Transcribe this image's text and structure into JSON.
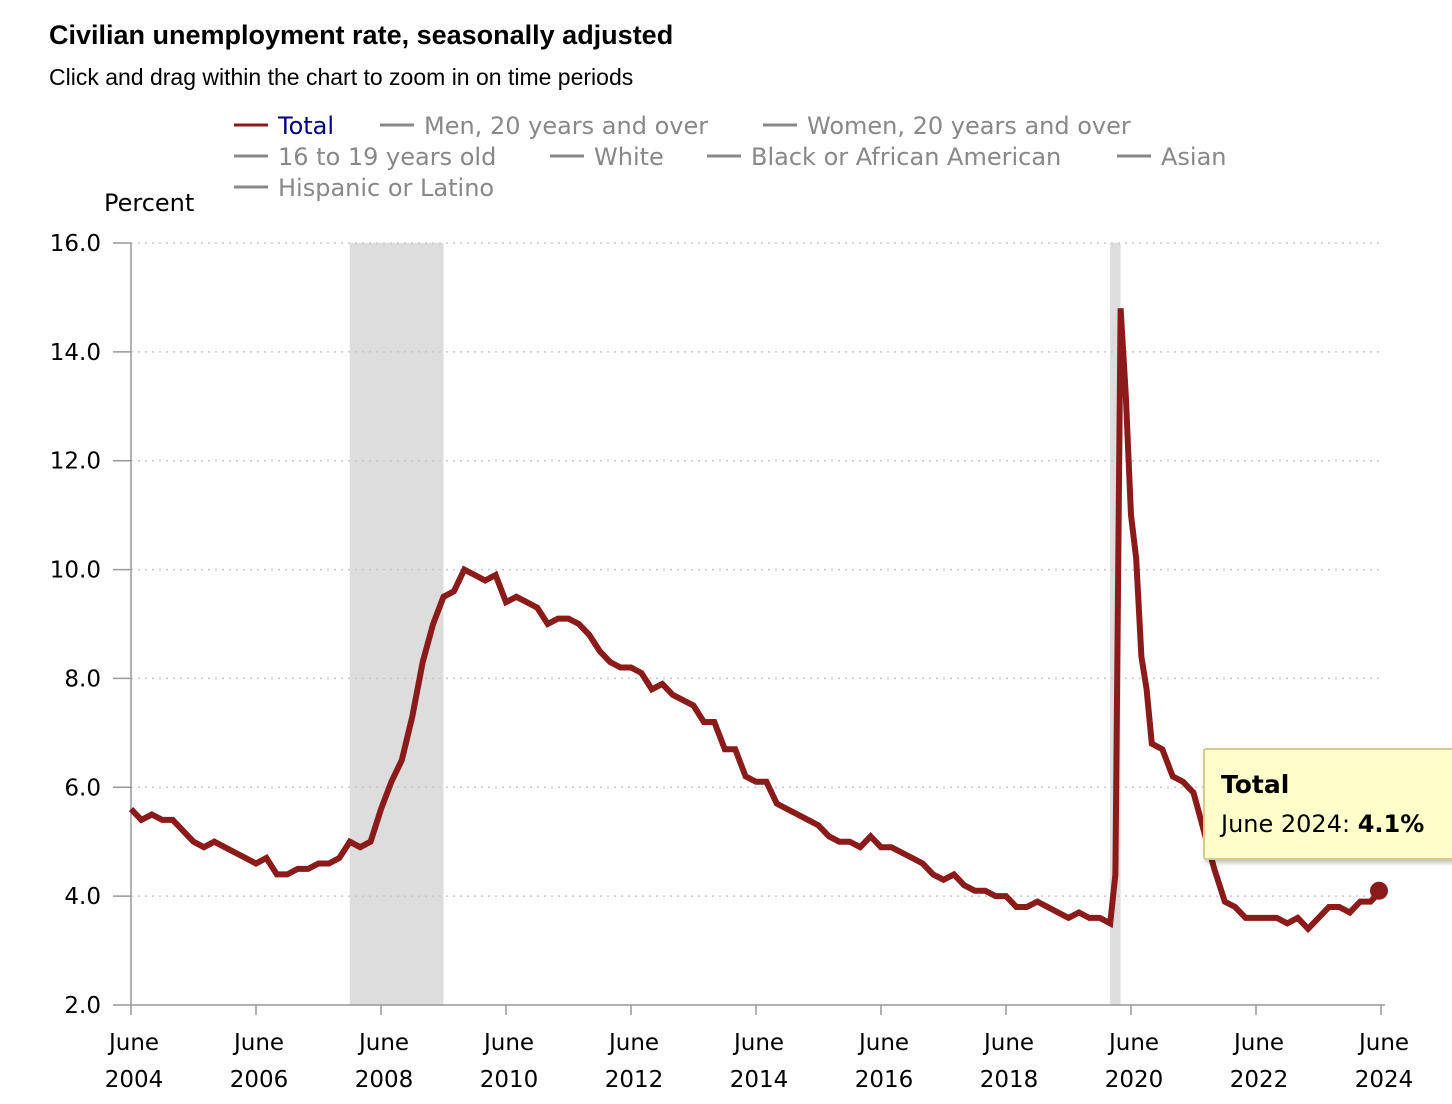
{
  "header": {
    "title": "Civilian unemployment rate, seasonally adjusted",
    "subtitle": "Click and drag within the chart to zoom in on time periods"
  },
  "legend": {
    "items": [
      {
        "label": "Total",
        "color": "#8b1a1a",
        "text_color": "#000080",
        "active": true
      },
      {
        "label": "Men, 20 years and over",
        "color": "#888888",
        "text_color": "#888888",
        "active": false
      },
      {
        "label": "Women, 20 years and over",
        "color": "#888888",
        "text_color": "#888888",
        "active": false
      },
      {
        "label": "16 to 19 years old",
        "color": "#888888",
        "text_color": "#888888",
        "active": false
      },
      {
        "label": "White",
        "color": "#888888",
        "text_color": "#888888",
        "active": false
      },
      {
        "label": "Black or African American",
        "color": "#888888",
        "text_color": "#888888",
        "active": false
      },
      {
        "label": "Asian",
        "color": "#888888",
        "text_color": "#888888",
        "active": false
      },
      {
        "label": "Hispanic or Latino",
        "color": "#888888",
        "text_color": "#888888",
        "active": false
      }
    ]
  },
  "tooltip": {
    "series": "Total",
    "date": "June 2024",
    "value": "4.1%"
  },
  "chart_data": {
    "type": "line",
    "ylabel": "Percent",
    "ylim": [
      2.0,
      16.0
    ],
    "yticks": [
      "2.0",
      "4.0",
      "6.0",
      "8.0",
      "10.0",
      "12.0",
      "14.0",
      "16.0"
    ],
    "xrange": [
      "2004-06",
      "2024-06"
    ],
    "xticks": [
      {
        "month": "June",
        "year": "2004"
      },
      {
        "month": "June",
        "year": "2006"
      },
      {
        "month": "June",
        "year": "2008"
      },
      {
        "month": "June",
        "year": "2010"
      },
      {
        "month": "June",
        "year": "2012"
      },
      {
        "month": "June",
        "year": "2014"
      },
      {
        "month": "June",
        "year": "2016"
      },
      {
        "month": "June",
        "year": "2018"
      },
      {
        "month": "June",
        "year": "2020"
      },
      {
        "month": "June",
        "year": "2022"
      },
      {
        "month": "June",
        "year": "2024"
      }
    ],
    "recessions": [
      {
        "start": "2007-12",
        "end": "2009-06"
      },
      {
        "start": "2020-02",
        "end": "2020-04"
      }
    ],
    "grid": true,
    "series": [
      {
        "name": "Total",
        "color": "#8b1a1a",
        "points": [
          [
            "2004-06",
            5.6
          ],
          [
            "2004-08",
            5.4
          ],
          [
            "2004-10",
            5.5
          ],
          [
            "2004-12",
            5.4
          ],
          [
            "2005-02",
            5.4
          ],
          [
            "2005-04",
            5.2
          ],
          [
            "2005-06",
            5.0
          ],
          [
            "2005-08",
            4.9
          ],
          [
            "2005-10",
            5.0
          ],
          [
            "2005-12",
            4.9
          ],
          [
            "2006-02",
            4.8
          ],
          [
            "2006-04",
            4.7
          ],
          [
            "2006-06",
            4.6
          ],
          [
            "2006-08",
            4.7
          ],
          [
            "2006-10",
            4.4
          ],
          [
            "2006-12",
            4.4
          ],
          [
            "2007-02",
            4.5
          ],
          [
            "2007-04",
            4.5
          ],
          [
            "2007-06",
            4.6
          ],
          [
            "2007-08",
            4.6
          ],
          [
            "2007-10",
            4.7
          ],
          [
            "2007-12",
            5.0
          ],
          [
            "2008-02",
            4.9
          ],
          [
            "2008-04",
            5.0
          ],
          [
            "2008-06",
            5.6
          ],
          [
            "2008-08",
            6.1
          ],
          [
            "2008-10",
            6.5
          ],
          [
            "2008-12",
            7.3
          ],
          [
            "2009-02",
            8.3
          ],
          [
            "2009-04",
            9.0
          ],
          [
            "2009-06",
            9.5
          ],
          [
            "2009-08",
            9.6
          ],
          [
            "2009-10",
            10.0
          ],
          [
            "2009-12",
            9.9
          ],
          [
            "2010-02",
            9.8
          ],
          [
            "2010-04",
            9.9
          ],
          [
            "2010-06",
            9.4
          ],
          [
            "2010-08",
            9.5
          ],
          [
            "2010-10",
            9.4
          ],
          [
            "2010-12",
            9.3
          ],
          [
            "2011-02",
            9.0
          ],
          [
            "2011-04",
            9.1
          ],
          [
            "2011-06",
            9.1
          ],
          [
            "2011-08",
            9.0
          ],
          [
            "2011-10",
            8.8
          ],
          [
            "2011-12",
            8.5
          ],
          [
            "2012-02",
            8.3
          ],
          [
            "2012-04",
            8.2
          ],
          [
            "2012-06",
            8.2
          ],
          [
            "2012-08",
            8.1
          ],
          [
            "2012-10",
            7.8
          ],
          [
            "2012-12",
            7.9
          ],
          [
            "2013-02",
            7.7
          ],
          [
            "2013-04",
            7.6
          ],
          [
            "2013-06",
            7.5
          ],
          [
            "2013-08",
            7.2
          ],
          [
            "2013-10",
            7.2
          ],
          [
            "2013-12",
            6.7
          ],
          [
            "2014-02",
            6.7
          ],
          [
            "2014-04",
            6.2
          ],
          [
            "2014-06",
            6.1
          ],
          [
            "2014-08",
            6.1
          ],
          [
            "2014-10",
            5.7
          ],
          [
            "2014-12",
            5.6
          ],
          [
            "2015-02",
            5.5
          ],
          [
            "2015-04",
            5.4
          ],
          [
            "2015-06",
            5.3
          ],
          [
            "2015-08",
            5.1
          ],
          [
            "2015-10",
            5.0
          ],
          [
            "2015-12",
            5.0
          ],
          [
            "2016-02",
            4.9
          ],
          [
            "2016-04",
            5.1
          ],
          [
            "2016-06",
            4.9
          ],
          [
            "2016-08",
            4.9
          ],
          [
            "2016-10",
            4.8
          ],
          [
            "2016-12",
            4.7
          ],
          [
            "2017-02",
            4.6
          ],
          [
            "2017-04",
            4.4
          ],
          [
            "2017-06",
            4.3
          ],
          [
            "2017-08",
            4.4
          ],
          [
            "2017-10",
            4.2
          ],
          [
            "2017-12",
            4.1
          ],
          [
            "2018-02",
            4.1
          ],
          [
            "2018-04",
            4.0
          ],
          [
            "2018-06",
            4.0
          ],
          [
            "2018-08",
            3.8
          ],
          [
            "2018-10",
            3.8
          ],
          [
            "2018-12",
            3.9
          ],
          [
            "2019-02",
            3.8
          ],
          [
            "2019-04",
            3.7
          ],
          [
            "2019-06",
            3.6
          ],
          [
            "2019-08",
            3.7
          ],
          [
            "2019-10",
            3.6
          ],
          [
            "2019-12",
            3.6
          ],
          [
            "2020-02",
            3.5
          ],
          [
            "2020-03",
            4.4
          ],
          [
            "2020-04",
            14.8
          ],
          [
            "2020-05",
            13.2
          ],
          [
            "2020-06",
            11.0
          ],
          [
            "2020-07",
            10.2
          ],
          [
            "2020-08",
            8.4
          ],
          [
            "2020-09",
            7.8
          ],
          [
            "2020-10",
            6.8
          ],
          [
            "2020-12",
            6.7
          ],
          [
            "2021-02",
            6.2
          ],
          [
            "2021-04",
            6.1
          ],
          [
            "2021-06",
            5.9
          ],
          [
            "2021-08",
            5.2
          ],
          [
            "2021-10",
            4.5
          ],
          [
            "2021-12",
            3.9
          ],
          [
            "2022-02",
            3.8
          ],
          [
            "2022-04",
            3.6
          ],
          [
            "2022-06",
            3.6
          ],
          [
            "2022-08",
            3.6
          ],
          [
            "2022-10",
            3.6
          ],
          [
            "2022-12",
            3.5
          ],
          [
            "2023-02",
            3.6
          ],
          [
            "2023-04",
            3.4
          ],
          [
            "2023-06",
            3.6
          ],
          [
            "2023-08",
            3.8
          ],
          [
            "2023-10",
            3.8
          ],
          [
            "2023-12",
            3.7
          ],
          [
            "2024-02",
            3.9
          ],
          [
            "2024-04",
            3.9
          ],
          [
            "2024-06",
            4.1
          ]
        ]
      }
    ]
  }
}
